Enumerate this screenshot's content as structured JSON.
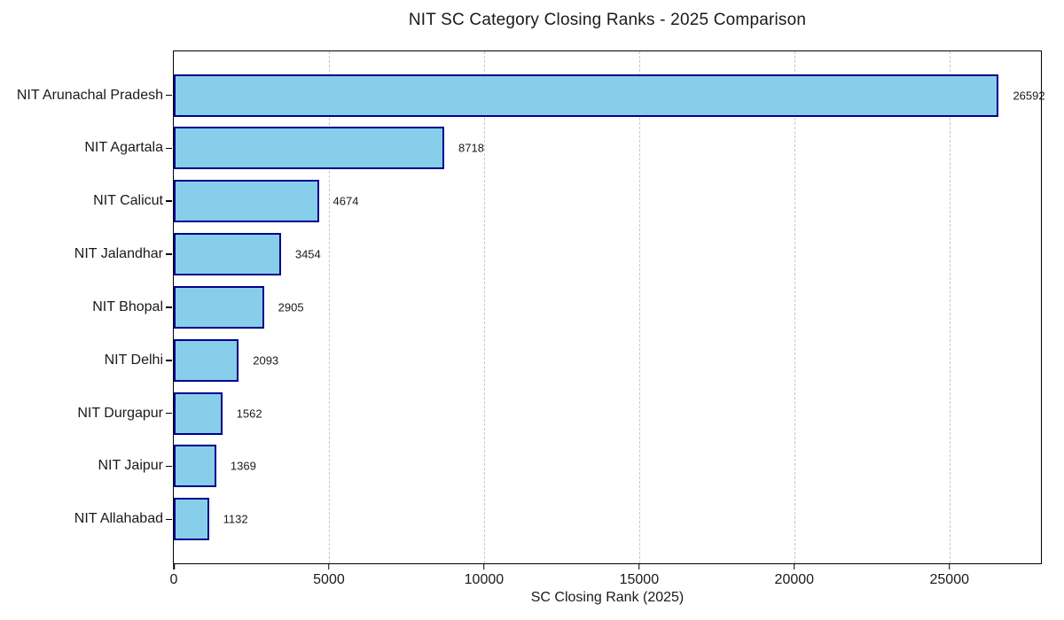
{
  "chart_data": {
    "type": "bar",
    "orientation": "horizontal",
    "title": "NIT SC Category Closing Ranks - 2025 Comparison",
    "xlabel": "SC Closing Rank (2025)",
    "ylabel": "",
    "categories": [
      "NIT Arunachal Pradesh",
      "NIT Agartala",
      "NIT Calicut",
      "NIT Jalandhar",
      "NIT Bhopal",
      "NIT Delhi",
      "NIT Durgapur",
      "NIT Jaipur",
      "NIT Allahabad"
    ],
    "values": [
      26592,
      8718,
      4674,
      3454,
      2905,
      2093,
      1562,
      1369,
      1132
    ],
    "value_labels": [
      "26592",
      "8718",
      "4674",
      "3454",
      "2905",
      "2093",
      "1562",
      "1369",
      "1132"
    ],
    "xticks": [
      0,
      5000,
      10000,
      15000,
      20000,
      25000
    ],
    "xtick_labels": [
      "0",
      "5000",
      "10000",
      "15000",
      "20000",
      "25000"
    ],
    "xlim": [
      0,
      27922
    ],
    "grid": "vertical-dashed",
    "legend": "none",
    "bar_fill_color": "#87CEEB",
    "bar_edge_color": "#00008B",
    "grid_color": "#C8C8C8",
    "spine_color": "#000000",
    "text_color": "#1A1A1A",
    "background_color": "#FFFFFF"
  }
}
